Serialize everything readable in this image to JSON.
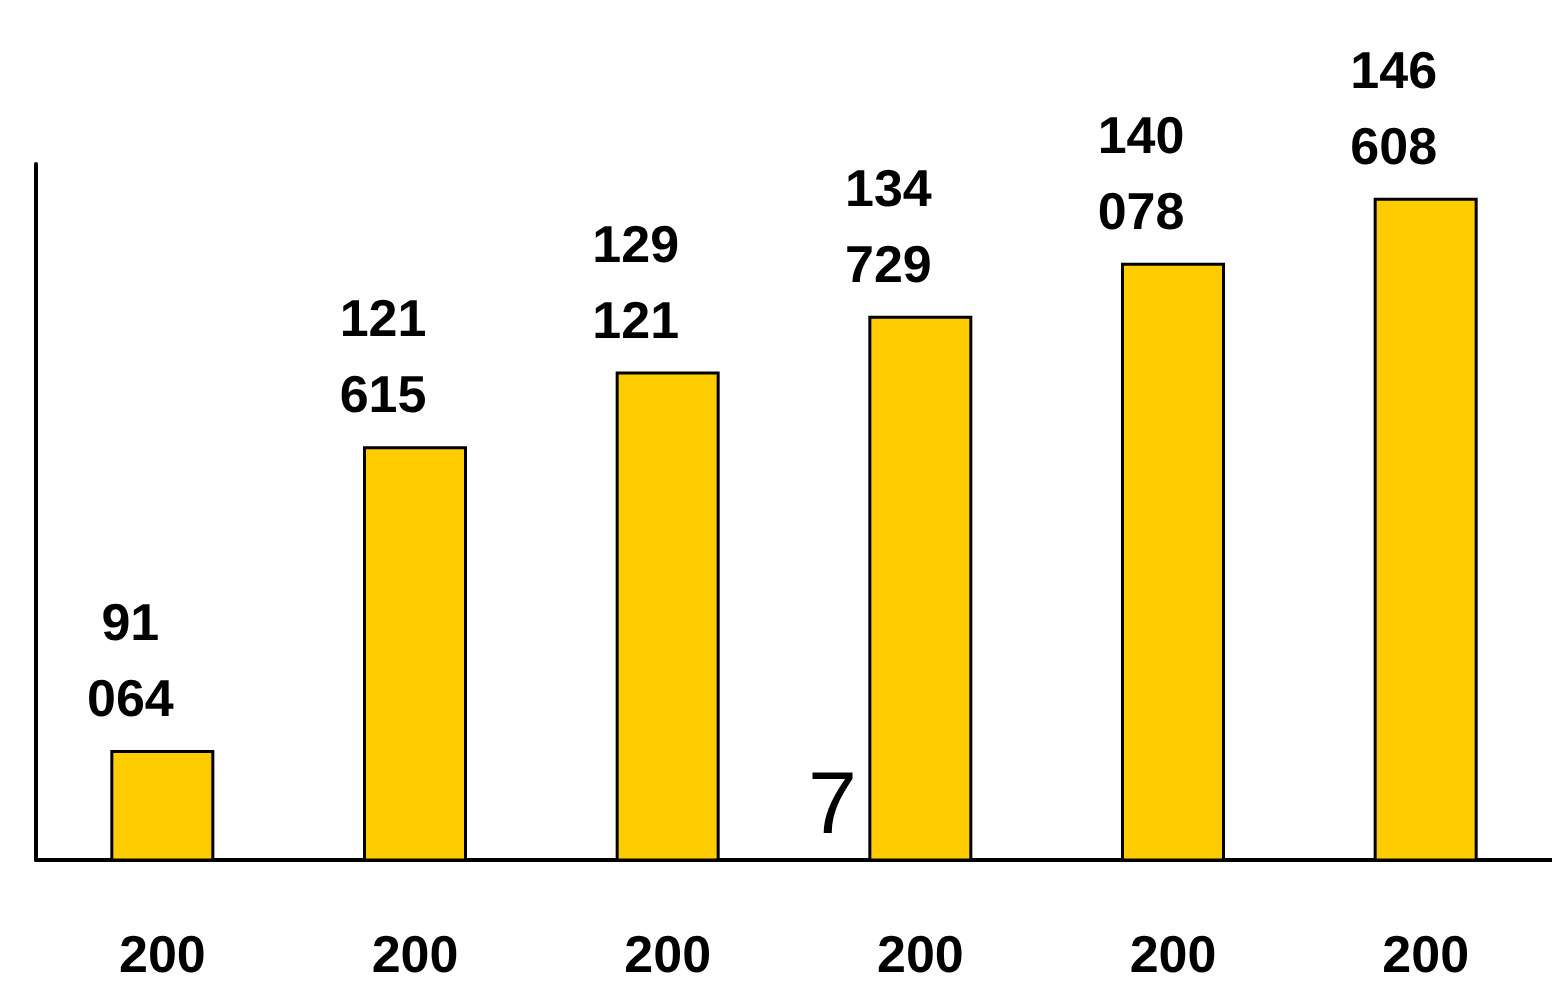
{
  "chart_data": {
    "type": "bar",
    "categories": [
      "200",
      "200",
      "200",
      "200",
      "200",
      "200"
    ],
    "values": [
      91064,
      121615,
      129121,
      134729,
      140078,
      146608
    ],
    "value_labels": [
      "91 064",
      "121 615",
      "129 121",
      "134 729",
      "140 078",
      "146 608"
    ],
    "color": "#ffcc00",
    "ylim": [
      80000,
      150000
    ],
    "tick_labels": "x",
    "grid": false,
    "annotations": [
      "7"
    ]
  }
}
